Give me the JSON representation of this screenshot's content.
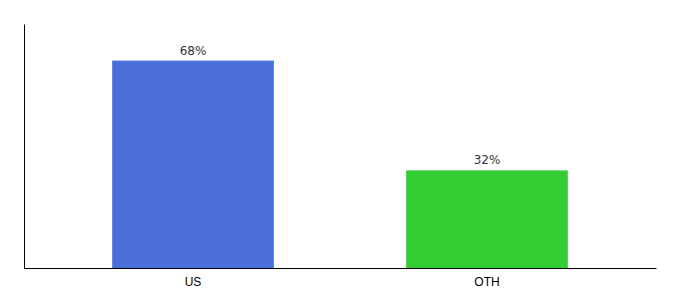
{
  "chart_data": {
    "type": "bar",
    "categories": [
      "US",
      "OTH"
    ],
    "values": [
      68,
      32
    ],
    "value_labels": [
      "68%",
      "32%"
    ],
    "colors": [
      "#4a6fdb",
      "#33cc33"
    ],
    "ylim": [
      0,
      80
    ],
    "yticks": [],
    "data_labels": true,
    "tick_labels": "x"
  }
}
